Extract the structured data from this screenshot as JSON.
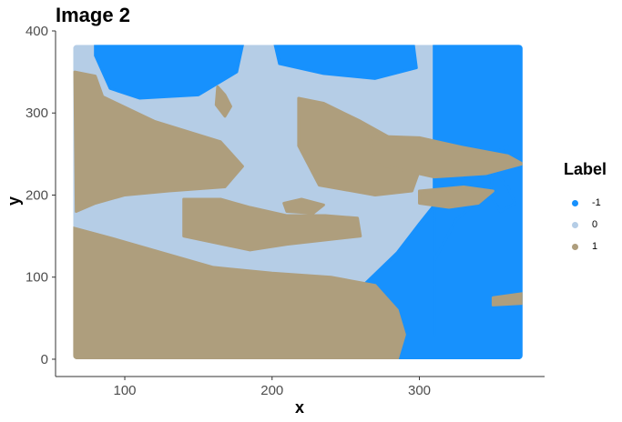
{
  "chart_data": {
    "type": "scatter",
    "title": "Image 2",
    "xlabel": "x",
    "ylabel": "y",
    "xlim": [
      53,
      385
    ],
    "ylim": [
      -10,
      400
    ],
    "xticks": [
      100,
      200,
      300
    ],
    "yticks": [
      0,
      100,
      200,
      300,
      400
    ],
    "grid": false,
    "legend": {
      "title": "Label",
      "position": "right",
      "entries": [
        {
          "label": "-1",
          "color": "#1791fd"
        },
        {
          "label": "0",
          "color": "#b5cde6"
        },
        {
          "label": "1",
          "color": "#ae9e7d"
        }
      ]
    },
    "data_extent": {
      "x": [
        65,
        370
      ],
      "y": [
        0,
        383
      ]
    },
    "regions": [
      {
        "label": "-1",
        "points": [
          [
            80,
            383
          ],
          [
            180,
            383
          ],
          [
            176,
            350
          ],
          [
            150,
            322
          ],
          [
            110,
            318
          ],
          [
            90,
            330
          ],
          [
            80,
            370
          ]
        ]
      },
      {
        "label": "-1",
        "points": [
          [
            202,
            383
          ],
          [
            296,
            383
          ],
          [
            298,
            355
          ],
          [
            270,
            342
          ],
          [
            235,
            348
          ],
          [
            205,
            360
          ]
        ]
      },
      {
        "label": "-1",
        "points": [
          [
            310,
            383
          ],
          [
            370,
            383
          ],
          [
            370,
            0
          ],
          [
            240,
            0
          ],
          [
            250,
            40
          ],
          [
            262,
            90
          ],
          [
            285,
            130
          ],
          [
            300,
            165
          ],
          [
            320,
            210
          ],
          [
            340,
            240
          ],
          [
            360,
            260
          ],
          [
            345,
            200
          ],
          [
            325,
            170
          ],
          [
            310,
            120
          ],
          [
            310,
            30
          ]
        ]
      },
      {
        "label": "-1",
        "points": [
          [
            350,
            230
          ],
          [
            360,
            210
          ],
          [
            365,
            190
          ],
          [
            355,
            180
          ],
          [
            348,
            200
          ]
        ]
      },
      {
        "label": "1",
        "points": [
          [
            66,
            350
          ],
          [
            80,
            345
          ],
          [
            85,
            320
          ],
          [
            120,
            290
          ],
          [
            165,
            265
          ],
          [
            180,
            235
          ],
          [
            168,
            210
          ],
          [
            130,
            205
          ],
          [
            100,
            200
          ],
          [
            80,
            190
          ],
          [
            67,
            180
          ]
        ]
      },
      {
        "label": "1",
        "points": [
          [
            218,
            318
          ],
          [
            235,
            312
          ],
          [
            260,
            290
          ],
          [
            285,
            265
          ],
          [
            300,
            230
          ],
          [
            295,
            205
          ],
          [
            270,
            200
          ],
          [
            232,
            212
          ],
          [
            218,
            260
          ]
        ]
      },
      {
        "label": "1",
        "points": [
          [
            266,
            272
          ],
          [
            300,
            270
          ],
          [
            330,
            258
          ],
          [
            360,
            248
          ],
          [
            370,
            238
          ],
          [
            345,
            226
          ],
          [
            310,
            222
          ],
          [
            270,
            238
          ]
        ]
      },
      {
        "label": "1",
        "points": [
          [
            140,
            195
          ],
          [
            165,
            195
          ],
          [
            185,
            185
          ],
          [
            210,
            175
          ],
          [
            236,
            175
          ],
          [
            258,
            172
          ],
          [
            260,
            150
          ],
          [
            210,
            140
          ],
          [
            185,
            133
          ],
          [
            140,
            150
          ]
        ]
      },
      {
        "label": "1",
        "points": [
          [
            65,
            160
          ],
          [
            90,
            148
          ],
          [
            125,
            130
          ],
          [
            160,
            112
          ],
          [
            200,
            105
          ],
          [
            240,
            100
          ],
          [
            270,
            90
          ],
          [
            285,
            60
          ],
          [
            290,
            30
          ],
          [
            285,
            0
          ],
          [
            65,
            0
          ]
        ]
      },
      {
        "label": "1",
        "points": [
          [
            300,
            205
          ],
          [
            330,
            210
          ],
          [
            350,
            205
          ],
          [
            340,
            190
          ],
          [
            320,
            185
          ],
          [
            300,
            190
          ]
        ]
      },
      {
        "label": "1",
        "points": [
          [
            208,
            190
          ],
          [
            220,
            195
          ],
          [
            235,
            188
          ],
          [
            228,
            178
          ],
          [
            210,
            180
          ]
        ]
      },
      {
        "label": "1",
        "points": [
          [
            350,
            75
          ],
          [
            370,
            80
          ],
          [
            370,
            68
          ],
          [
            350,
            66
          ]
        ]
      },
      {
        "label": "1",
        "points": [
          [
            163,
            332
          ],
          [
            168,
            322
          ],
          [
            172,
            308
          ],
          [
            168,
            296
          ],
          [
            162,
            310
          ]
        ]
      }
    ]
  }
}
